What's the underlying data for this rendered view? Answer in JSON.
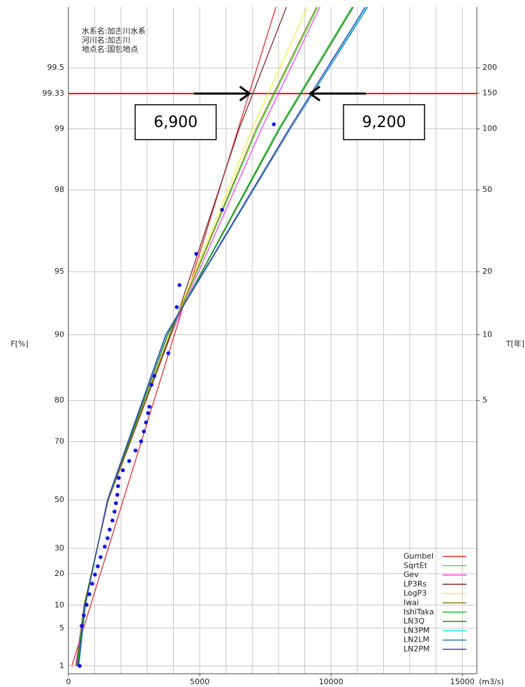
{
  "chart_data": {
    "type": "probability",
    "header_text": [
      "水系名:加古川水系",
      "河川名:加古川",
      "地点名:国包地点"
    ],
    "ylabel": "F[%]",
    "y2label": "T[年]",
    "xunit": "(m3/s)",
    "xlim": [
      0,
      15550
    ],
    "xticks": [
      0,
      5000,
      10000,
      15000
    ],
    "xgrid_step": 1000,
    "yscale": "gumbel",
    "ylim": [
      0.65,
      99.75
    ],
    "yticks": [
      1,
      5,
      10,
      20,
      30,
      50,
      70,
      80,
      90,
      95,
      98,
      99,
      99.33,
      99.5
    ],
    "y2scale": "return-period",
    "y2lim": [
      1.0065,
      400
    ],
    "y2ticks": [
      5,
      10,
      20,
      50,
      100,
      150,
      200
    ],
    "grid": true,
    "reference_line": {
      "value": 99.33,
      "color": "#ff0000"
    },
    "annotations": [
      {
        "label": "6,900",
        "value": 6900,
        "direction": "right"
      },
      {
        "label": "9,200",
        "value": 9200,
        "direction": "left"
      }
    ],
    "legend": "lower right",
    "series": [
      {
        "name": "Gumbel",
        "color": "#e03030",
        "x": [
          130,
          7900
        ],
        "values": [
          1,
          99.75
        ]
      },
      {
        "name": "SqrtEt",
        "color": "#50e050",
        "x": [
          350,
          610,
          1500,
          3870,
          7200,
          9500
        ],
        "values": [
          1,
          10,
          50,
          90,
          99,
          99.75
        ]
      },
      {
        "name": "Gev",
        "color": "#ff40ff",
        "x": [
          280,
          590,
          1520,
          3900,
          7350,
          9575
        ],
        "values": [
          1,
          10,
          50,
          90,
          99,
          99.75
        ]
      },
      {
        "name": "LP3Rs",
        "color": "#802828",
        "x": [
          300,
          600,
          1520,
          3900,
          6500,
          8300
        ],
        "values": [
          1,
          10,
          50,
          90,
          99,
          99.75
        ]
      },
      {
        "name": "LogP3",
        "color": "#f0f040",
        "x": [
          320,
          590,
          1510,
          3850,
          7000,
          9100
        ],
        "values": [
          1,
          10,
          50,
          90,
          99,
          99.75
        ]
      },
      {
        "name": "Iwai",
        "color": "#808000",
        "x": [
          340,
          600,
          1510,
          3860,
          7150,
          9450
        ],
        "values": [
          1,
          10,
          50,
          90,
          99,
          99.75
        ]
      },
      {
        "name": "IshiTaka",
        "color": "#20c020",
        "x": [
          330,
          620,
          1500,
          3780,
          8000,
          10800
        ],
        "values": [
          1,
          10,
          50,
          90,
          99,
          99.75
        ]
      },
      {
        "name": "LN3Q",
        "color": "#208020",
        "x": [
          320,
          610,
          1500,
          3780,
          8050,
          10850
        ],
        "values": [
          1,
          10,
          50,
          90,
          99,
          99.75
        ]
      },
      {
        "name": "LN3PM",
        "color": "#20e0e0",
        "x": [
          400,
          650,
          1480,
          3700,
          8400,
          11350
        ],
        "values": [
          1,
          10,
          50,
          90,
          99,
          99.75
        ]
      },
      {
        "name": "LN2LM",
        "color": "#3080c0",
        "x": [
          390,
          640,
          1490,
          3720,
          8450,
          11400
        ],
        "values": [
          1,
          10,
          50,
          90,
          99,
          99.75
        ]
      },
      {
        "name": "LN2PM",
        "color": "#4040b0",
        "x": [
          380,
          630,
          1490,
          3710,
          8400,
          11300
        ],
        "values": [
          1,
          10,
          50,
          90,
          99,
          99.75
        ]
      }
    ],
    "points": {
      "color": "#1010e0",
      "x": [
        426,
        505,
        585,
        692,
        798,
        904,
        1011,
        1117,
        1224,
        1383,
        1490,
        1569,
        1676,
        1756,
        1809,
        1862,
        1889,
        1915,
        2075,
        2314,
        2554,
        2766,
        2873,
        2953,
        3032,
        3086,
        3165,
        3272,
        3804,
        4123,
        4229,
        4868,
        5852,
        7820
      ],
      "values": [
        1.0,
        5.4,
        7.5,
        10.1,
        13.1,
        16.5,
        19.7,
        22.8,
        26.4,
        30.7,
        34.2,
        37.8,
        41.6,
        45.3,
        48.7,
        52.0,
        55.3,
        58.3,
        61.0,
        64.1,
        67.4,
        70.1,
        72.8,
        75.1,
        77.3,
        78.7,
        83.0,
        84.5,
        87.8,
        92.6,
        94.2,
        95.9,
        97.5,
        99.05
      ]
    }
  }
}
